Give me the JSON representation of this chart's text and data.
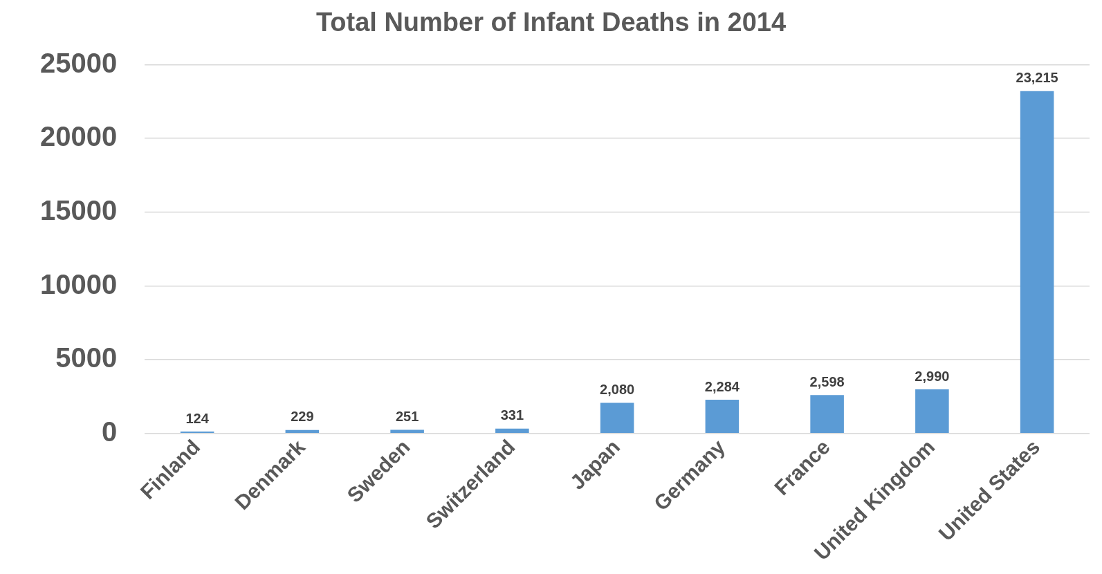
{
  "chart_data": {
    "type": "bar",
    "title": "Total Number of Infant Deaths in 2014",
    "categories": [
      "Finland",
      "Denmark",
      "Sweden",
      "Switzerland",
      "Japan",
      "Germany",
      "France",
      "United Kingdom",
      "United States"
    ],
    "values": [
      124,
      229,
      251,
      331,
      2080,
      2284,
      2598,
      2990,
      23215
    ],
    "value_labels": [
      "124",
      "229",
      "251",
      "331",
      "2,080",
      "2,284",
      "2,598",
      "2,990",
      "23,215"
    ],
    "color": "#5b9bd5",
    "ylim": [
      0,
      25000
    ],
    "yticks": [
      0,
      5000,
      10000,
      15000,
      20000,
      25000
    ],
    "grid": "y",
    "legend": false
  }
}
